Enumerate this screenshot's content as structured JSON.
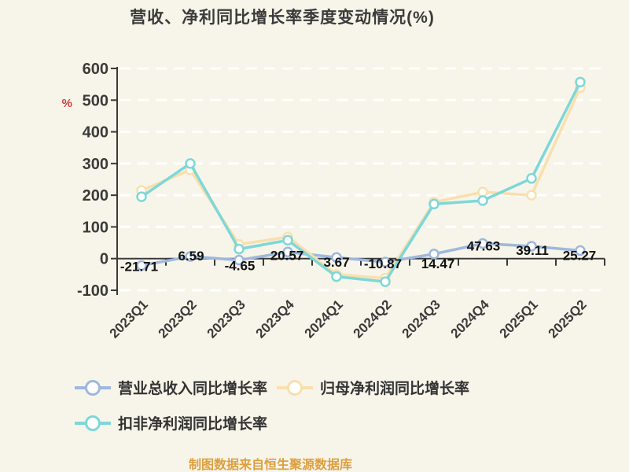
{
  "title": "营收、净利同比增长率季度变动情况(%)",
  "caption": "制图数据来自恒生聚源数据库",
  "y_axis": {
    "unit": "%",
    "ticks": [
      600,
      500,
      400,
      300,
      200,
      100,
      0,
      -100
    ]
  },
  "chart_data": {
    "type": "line",
    "title": "营收、净利同比增长率季度变动情况(%)",
    "xlabel": "",
    "ylabel": "%",
    "ylim": [
      -100,
      600
    ],
    "grid": "horizontal-dashed",
    "legend_position": "bottom-left",
    "categories": [
      "2023Q1",
      "2023Q2",
      "2023Q3",
      "2023Q4",
      "2024Q1",
      "2024Q2",
      "2024Q3",
      "2024Q4",
      "2025Q1",
      "2025Q2"
    ],
    "series": [
      {
        "name": "营业总收入同比增长率",
        "color": "#9EB8DE",
        "values": [
          -21.71,
          6.59,
          -4.65,
          20.57,
          3.67,
          -10.87,
          14.47,
          47.63,
          39.11,
          25.27
        ],
        "labels": [
          "-21.71",
          "6.59",
          "-4.65",
          "20.57",
          "3.67",
          "-10.87",
          "14.47",
          "47.63",
          "39.11",
          "25.27"
        ]
      },
      {
        "name": "归母净利润同比增长率",
        "color": "#F9DFAE",
        "values": [
          215,
          280,
          45,
          68,
          -50,
          -62,
          178,
          210,
          200,
          540
        ]
      },
      {
        "name": "扣非净利润同比增长率",
        "color": "#7ED7D8",
        "values": [
          195,
          300,
          30,
          58,
          -57,
          -73,
          172,
          183,
          253,
          557
        ]
      }
    ]
  },
  "colors": {
    "background": "#F7F5E9",
    "grid": "#FFFFFF",
    "axis": "#3A3A3A",
    "tick_label": "#3A3A3A",
    "data_label": "#111111",
    "unit_label": "#D43A3A",
    "caption": "#DE9F3F",
    "marker_fill": "#FFFFFF"
  }
}
